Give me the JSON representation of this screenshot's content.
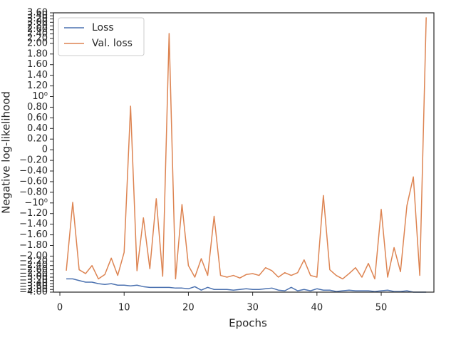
{
  "chart_data": {
    "type": "line",
    "xlabel": "Epochs",
    "ylabel": "Negative log-likelihood",
    "x": [
      1,
      2,
      3,
      4,
      5,
      6,
      7,
      8,
      9,
      10,
      11,
      12,
      13,
      14,
      15,
      16,
      17,
      18,
      19,
      20,
      21,
      22,
      23,
      24,
      25,
      26,
      27,
      28,
      29,
      30,
      31,
      32,
      33,
      34,
      35,
      36,
      37,
      38,
      39,
      40,
      41,
      42,
      43,
      44,
      45,
      46,
      47,
      48,
      49,
      50,
      51,
      52,
      53,
      54,
      55,
      56,
      57
    ],
    "series": [
      {
        "name": "Loss",
        "color": "#4c72b0",
        "values": [
          -3.1,
          -3.1,
          -3.2,
          -3.3,
          -3.3,
          -3.4,
          -3.45,
          -3.4,
          -3.5,
          -3.5,
          -3.55,
          -3.5,
          -3.6,
          -3.65,
          -3.65,
          -3.65,
          -3.65,
          -3.7,
          -3.7,
          -3.75,
          -3.6,
          -3.85,
          -3.65,
          -3.8,
          -3.8,
          -3.8,
          -3.85,
          -3.8,
          -3.75,
          -3.8,
          -3.8,
          -3.75,
          -3.7,
          -3.85,
          -3.9,
          -3.65,
          -3.9,
          -3.8,
          -3.9,
          -3.75,
          -3.85,
          -3.85,
          -3.95,
          -3.9,
          -3.85,
          -3.9,
          -3.9,
          -3.9,
          -3.95,
          -3.9,
          -3.85,
          -3.95,
          -3.95,
          -3.9,
          -4.0,
          -4.0,
          -4.0
        ]
      },
      {
        "name": "Val. loss",
        "color": "#dd8452",
        "values": [
          -2.65,
          -0.99,
          -2.6,
          -2.8,
          -2.4,
          -3.1,
          -2.85,
          -2.08,
          -2.9,
          -1.93,
          0.82,
          -2.65,
          -1.28,
          -2.55,
          -0.92,
          -2.95,
          2.42,
          -3.1,
          -1.03,
          -2.4,
          -3.0,
          -2.1,
          -2.9,
          -1.25,
          -2.9,
          -3.0,
          -2.9,
          -3.05,
          -2.85,
          -2.8,
          -2.9,
          -2.5,
          -2.65,
          -3.0,
          -2.75,
          -2.9,
          -2.75,
          -2.15,
          -2.9,
          -3.0,
          -0.86,
          -2.6,
          -2.9,
          -3.1,
          -2.8,
          -2.5,
          -3.0,
          -2.3,
          -3.1,
          -1.12,
          -3.0,
          -1.84,
          -2.7,
          -1.05,
          -0.51,
          -2.9,
          3.3
        ]
      }
    ],
    "xlim": [
      -1,
      58.2
    ],
    "xticks": [
      0,
      10,
      20,
      30,
      40,
      50
    ],
    "ylim": [
      -4.0,
      3.6
    ],
    "yscale": "symlog",
    "linthresh": 2,
    "linscale": 0.8,
    "yticks": [
      {
        "value": -4.0,
        "label": "−4.00"
      },
      {
        "value": -3.8,
        "label": "−3.80"
      },
      {
        "value": -3.6,
        "label": "−3.60"
      },
      {
        "value": -3.4,
        "label": "−3.40"
      },
      {
        "value": -3.2,
        "label": "−3.20"
      },
      {
        "value": -3.0,
        "label": "−3.00"
      },
      {
        "value": -2.8,
        "label": "−2.80"
      },
      {
        "value": -2.6,
        "label": "−2.60"
      },
      {
        "value": -2.4,
        "label": "−2.40"
      },
      {
        "value": -2.2,
        "label": "−2.20"
      },
      {
        "value": -2.0,
        "label": "−2.00"
      },
      {
        "value": -1.8,
        "label": "−1.80"
      },
      {
        "value": -1.6,
        "label": "−1.60"
      },
      {
        "value": -1.4,
        "label": "−1.40"
      },
      {
        "value": -1.2,
        "label": "−1.20"
      },
      {
        "value": -1,
        "label": "−10⁰"
      },
      {
        "value": -0.8,
        "label": "−0.80"
      },
      {
        "value": -0.6,
        "label": "−0.60"
      },
      {
        "value": -0.4,
        "label": "−0.40"
      },
      {
        "value": -0.2,
        "label": "−0.20"
      },
      0,
      {
        "value": 0.2,
        "label": "0.20"
      },
      {
        "value": 0.4,
        "label": "0.40"
      },
      {
        "value": 0.6,
        "label": "0.60"
      },
      {
        "value": 0.8,
        "label": "0.80"
      },
      {
        "value": 1,
        "label": "10⁰"
      },
      {
        "value": 1.2,
        "label": "1.20"
      },
      {
        "value": 1.4,
        "label": "1.40"
      },
      {
        "value": 1.6,
        "label": "1.60"
      },
      {
        "value": 1.8,
        "label": "1.80"
      },
      {
        "value": 2.0,
        "label": "2.00"
      },
      {
        "value": 2.2,
        "label": "2.20"
      },
      {
        "value": 2.4,
        "label": "2.40"
      },
      {
        "value": 2.6,
        "label": "2.60"
      },
      {
        "value": 2.8,
        "label": "2.80"
      },
      {
        "value": 3.0,
        "label": "3.00"
      },
      {
        "value": 3.2,
        "label": "3.20"
      },
      {
        "value": 3.4,
        "label": "3.40"
      },
      {
        "value": 3.6,
        "label": "3.60"
      }
    ],
    "legend": "upper left",
    "grid": false
  }
}
